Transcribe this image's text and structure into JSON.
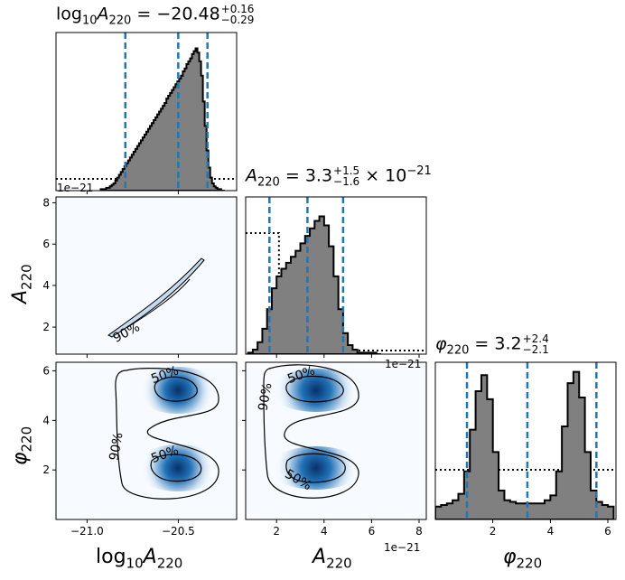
{
  "params": [
    {
      "sym": "A",
      "sub": "220",
      "log": true
    },
    {
      "sym": "A",
      "sub": "220",
      "log": false
    },
    {
      "sym": "φ",
      "sub": "220",
      "log": false
    }
  ],
  "titles": [
    {
      "label_pre": "log",
      "label_pre_sub": "10",
      "sym": "A",
      "sub": "220",
      "eq": " = ",
      "value": "−20.48",
      "plus": "+0.16",
      "minus": "−0.29",
      "suffix": ""
    },
    {
      "label_pre": "",
      "label_pre_sub": "",
      "sym": "A",
      "sub": "220",
      "eq": " = ",
      "value": "3.3",
      "plus": "+1.5",
      "minus": "−1.6",
      "suffix": " × 10",
      "suffix_sup": "−21"
    },
    {
      "label_pre": "",
      "label_pre_sub": "",
      "sym": "φ",
      "sub": "220",
      "eq": " = ",
      "value": "3.2",
      "plus": "+2.4",
      "minus": "−2.1",
      "suffix": ""
    }
  ],
  "axis_labels": {
    "x0": {
      "pre": "log",
      "pre_sub": "10",
      "sym": "A",
      "sub": "220"
    },
    "x1": {
      "sym": "A",
      "sub": "220"
    },
    "x2": {
      "sym": "φ",
      "sub": "220"
    },
    "y1": {
      "sym": "A",
      "sub": "220"
    },
    "y2": {
      "sym": "φ",
      "sub": "220"
    }
  },
  "offsets": {
    "a_top": "1e−21",
    "a_diag": "1e−21",
    "a_bottom": "1e−21"
  },
  "colors": {
    "hist_fill": "#808080",
    "hist_edge": "#000000",
    "quantile": "#1f77b4",
    "prior": "#000000",
    "kde_dark": "#08306b",
    "kde_light": "#f7fbff",
    "contour": "#000000"
  },
  "chart_data": {
    "type": "corner",
    "diagonal": [
      {
        "param": "log10A220",
        "xlim": [
          -21.15,
          -20.16
        ],
        "bins_x": [
          -20.9,
          -20.89,
          -20.88,
          -20.87,
          -20.86,
          -20.85,
          -20.84,
          -20.83,
          -20.82,
          -20.81,
          -20.8,
          -20.79,
          -20.78,
          -20.77,
          -20.76,
          -20.75,
          -20.74,
          -20.73,
          -20.72,
          -20.71,
          -20.7,
          -20.69,
          -20.68,
          -20.67,
          -20.66,
          -20.65,
          -20.64,
          -20.63,
          -20.62,
          -20.61,
          -20.6,
          -20.59,
          -20.58,
          -20.57,
          -20.56,
          -20.55,
          -20.54,
          -20.53,
          -20.52,
          -20.51,
          -20.5,
          -20.49,
          -20.48,
          -20.47,
          -20.46,
          -20.45,
          -20.44,
          -20.43,
          -20.42,
          -20.41,
          -20.4,
          -20.39,
          -20.38,
          -20.37,
          -20.36,
          -20.35,
          -20.34,
          -20.33,
          -20.32,
          -20.31,
          -20.3,
          -20.29,
          -20.28,
          -20.27,
          -20.26,
          -20.25,
          -20.24,
          -20.23
        ],
        "counts": [
          1,
          1,
          1,
          2,
          2,
          3,
          4,
          5,
          7,
          9,
          11,
          13,
          15,
          17,
          19,
          21,
          23,
          25,
          27,
          29,
          31,
          33,
          35,
          37,
          39,
          41,
          43,
          45,
          47,
          49,
          51,
          53,
          55,
          57,
          59,
          61,
          64,
          66,
          68,
          70,
          72,
          74,
          76,
          78,
          80,
          83,
          85,
          88,
          90,
          92,
          95,
          97,
          99,
          96,
          90,
          80,
          62,
          45,
          28,
          16,
          9,
          5,
          3,
          2,
          1,
          1,
          0,
          0
        ],
        "quantiles": [
          -20.77,
          -20.48,
          -20.32
        ],
        "ylim": [
          0,
          110
        ]
      },
      {
        "param": "A220",
        "xlim": [
          0.7,
          8.3
        ],
        "bins_x": [
          0.9,
          1.1,
          1.3,
          1.5,
          1.7,
          1.9,
          2.1,
          2.3,
          2.5,
          2.7,
          2.9,
          3.1,
          3.3,
          3.5,
          3.7,
          3.9,
          4.1,
          4.3,
          4.5,
          4.7,
          4.9,
          5.1,
          5.3,
          5.5,
          5.7,
          5.9,
          6.1,
          6.3
        ],
        "counts": [
          1,
          3,
          8,
          17,
          30,
          44,
          52,
          57,
          61,
          65,
          69,
          74,
          79,
          84,
          89,
          92,
          86,
          72,
          52,
          30,
          14,
          6,
          3,
          1,
          1,
          1,
          1,
          0
        ],
        "quantiles": [
          1.7,
          3.3,
          4.8
        ],
        "ylim": [
          0,
          105
        ]
      },
      {
        "param": "phi220",
        "xlim": [
          0,
          6.28
        ],
        "bins_x": [
          0.1,
          0.3,
          0.5,
          0.7,
          0.9,
          1.1,
          1.3,
          1.5,
          1.7,
          1.9,
          2.1,
          2.3,
          2.5,
          2.7,
          2.9,
          3.1,
          3.3,
          3.5,
          3.7,
          3.9,
          4.1,
          4.3,
          4.5,
          4.7,
          4.9,
          5.1,
          5.3,
          5.5,
          5.7,
          5.9,
          6.1
        ],
        "counts": [
          8,
          9,
          10,
          12,
          16,
          30,
          56,
          80,
          90,
          75,
          42,
          18,
          12,
          11,
          10,
          10,
          10,
          10,
          10,
          12,
          15,
          30,
          58,
          85,
          92,
          76,
          42,
          18,
          11,
          9,
          8
        ],
        "quantiles": [
          1.1,
          3.2,
          5.6
        ],
        "ylim": [
          0,
          98
        ]
      }
    ],
    "xticks": {
      "log10A220": [
        "−21.0",
        "−20.5"
      ],
      "A220": [
        "2",
        "4",
        "6",
        "8"
      ],
      "phi220": [
        "2",
        "4",
        "6"
      ]
    },
    "yticks": {
      "A220": [
        "2",
        "4",
        "6",
        "8"
      ],
      "phi220": [
        "2",
        "4",
        "6"
      ]
    },
    "contour_labels": [
      "90%",
      "50%",
      "50%",
      "90%",
      "50%",
      "50%",
      "90%"
    ]
  }
}
